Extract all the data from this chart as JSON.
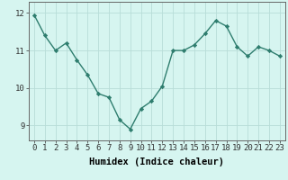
{
  "x": [
    0,
    1,
    2,
    3,
    4,
    5,
    6,
    7,
    8,
    9,
    10,
    11,
    12,
    13,
    14,
    15,
    16,
    17,
    18,
    19,
    20,
    21,
    22,
    23
  ],
  "y": [
    11.95,
    11.4,
    11.0,
    11.2,
    10.75,
    10.35,
    9.85,
    9.75,
    9.15,
    8.9,
    9.45,
    9.65,
    10.05,
    11.0,
    11.0,
    11.15,
    11.45,
    11.8,
    11.65,
    11.1,
    10.85,
    11.1,
    11.0,
    10.85
  ],
  "line_color": "#2e7d6e",
  "marker": "D",
  "markersize": 2.2,
  "linewidth": 1.0,
  "bg_color": "#d6f5f0",
  "grid_color": "#b8ddd8",
  "xlabel": "Humidex (Indice chaleur)",
  "xlabel_fontsize": 7.5,
  "ylabel_ticks": [
    9,
    10,
    11,
    12
  ],
  "ylim": [
    8.6,
    12.3
  ],
  "xlim": [
    -0.5,
    23.5
  ],
  "tick_fontsize": 6.5,
  "spine_color": "#666666"
}
